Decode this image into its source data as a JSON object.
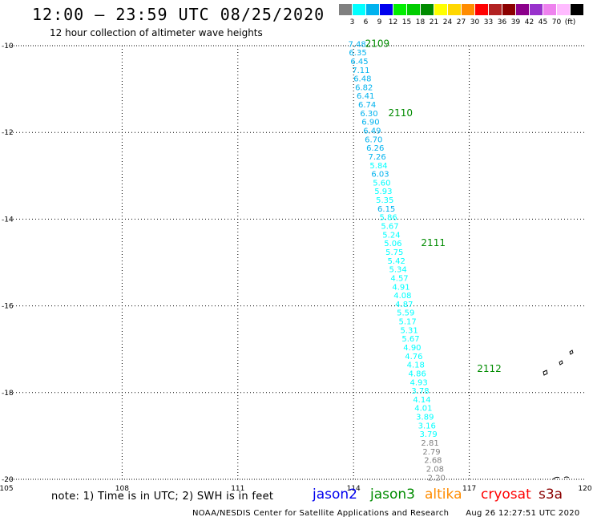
{
  "title": "12:00 – 23:59 UTC 08/25/2020",
  "subtitle": "12 hour collection of altimeter wave heights",
  "legend": {
    "colors": [
      "#808080",
      "#00ffff",
      "#00b2ee",
      "#0000ee",
      "#00ee00",
      "#00cd00",
      "#008b00",
      "#ffff00",
      "#ffd700",
      "#ff8c00",
      "#ff0000",
      "#b22222",
      "#8b0000",
      "#8b008b",
      "#9932cc",
      "#ee82ee",
      "#ffbbff",
      "#000000"
    ],
    "labels": [
      "3",
      "6",
      "9",
      "12",
      "15",
      "18",
      "21",
      "24",
      "27",
      "30",
      "33",
      "36",
      "39",
      "42",
      "45",
      "70",
      "(ft)"
    ]
  },
  "map": {
    "lon_ticks": [
      "105",
      "108",
      "111",
      "114",
      "117",
      "120"
    ],
    "lat_ticks": [
      "-10",
      "-12",
      "-14",
      "-16",
      "-18",
      "-20"
    ],
    "lon_min": 105,
    "lon_max": 120,
    "lat_min": -20,
    "lat_max": -10,
    "grid": "dotted",
    "times": [
      {
        "label": "2109",
        "lon": 114.3,
        "lat": -9.95
      },
      {
        "label": "2110",
        "lon": 114.9,
        "lat": -11.55
      },
      {
        "label": "2111",
        "lon": 115.75,
        "lat": -14.55
      },
      {
        "label": "2112",
        "lon": 117.2,
        "lat": -17.45
      }
    ],
    "track": [
      {
        "value": "7.48",
        "lon": 113.86,
        "lat": -9.95
      },
      {
        "value": "6.35",
        "lon": 113.88,
        "lat": -10.15
      },
      {
        "value": "6.45",
        "lon": 113.92,
        "lat": -10.35
      },
      {
        "value": "7.11",
        "lon": 113.96,
        "lat": -10.55
      },
      {
        "value": "6.48",
        "lon": 114.0,
        "lat": -10.75
      },
      {
        "value": "6.82",
        "lon": 114.04,
        "lat": -10.95
      },
      {
        "value": "6.41",
        "lon": 114.08,
        "lat": -11.15
      },
      {
        "value": "6.74",
        "lon": 114.12,
        "lat": -11.35
      },
      {
        "value": "6.30",
        "lon": 114.17,
        "lat": -11.55
      },
      {
        "value": "6.90",
        "lon": 114.21,
        "lat": -11.75
      },
      {
        "value": "6.49",
        "lon": 114.25,
        "lat": -11.95
      },
      {
        "value": "6.70",
        "lon": 114.29,
        "lat": -12.15
      },
      {
        "value": "6.26",
        "lon": 114.33,
        "lat": -12.35
      },
      {
        "value": "7.26",
        "lon": 114.38,
        "lat": -12.55
      },
      {
        "value": "5.84",
        "lon": 114.42,
        "lat": -12.75
      },
      {
        "value": "6.03",
        "lon": 114.46,
        "lat": -12.95
      },
      {
        "value": "5.60",
        "lon": 114.5,
        "lat": -13.15
      },
      {
        "value": "5.93",
        "lon": 114.54,
        "lat": -13.35
      },
      {
        "value": "5.35",
        "lon": 114.58,
        "lat": -13.55
      },
      {
        "value": "6.15",
        "lon": 114.62,
        "lat": -13.75
      },
      {
        "value": "5.86",
        "lon": 114.67,
        "lat": -13.95
      },
      {
        "value": "5.67",
        "lon": 114.71,
        "lat": -14.15
      },
      {
        "value": "5.24",
        "lon": 114.75,
        "lat": -14.35
      },
      {
        "value": "5.06",
        "lon": 114.79,
        "lat": -14.55
      },
      {
        "value": "5.75",
        "lon": 114.83,
        "lat": -14.75
      },
      {
        "value": "5.42",
        "lon": 114.88,
        "lat": -14.95
      },
      {
        "value": "5.34",
        "lon": 114.92,
        "lat": -15.15
      },
      {
        "value": "4.57",
        "lon": 114.96,
        "lat": -15.35
      },
      {
        "value": "4.91",
        "lon": 115.0,
        "lat": -15.55
      },
      {
        "value": "4.08",
        "lon": 115.04,
        "lat": -15.75
      },
      {
        "value": "4.87",
        "lon": 115.08,
        "lat": -15.95
      },
      {
        "value": "5.59",
        "lon": 115.12,
        "lat": -16.15
      },
      {
        "value": "5.17",
        "lon": 115.17,
        "lat": -16.35
      },
      {
        "value": "5.31",
        "lon": 115.21,
        "lat": -16.55
      },
      {
        "value": "5.67",
        "lon": 115.25,
        "lat": -16.75
      },
      {
        "value": "4.90",
        "lon": 115.29,
        "lat": -16.95
      },
      {
        "value": "4.76",
        "lon": 115.33,
        "lat": -17.15
      },
      {
        "value": "4.18",
        "lon": 115.38,
        "lat": -17.35
      },
      {
        "value": "4.86",
        "lon": 115.42,
        "lat": -17.55
      },
      {
        "value": "4.93",
        "lon": 115.46,
        "lat": -17.75
      },
      {
        "value": "3.78",
        "lon": 115.5,
        "lat": -17.95
      },
      {
        "value": "4.14",
        "lon": 115.54,
        "lat": -18.15
      },
      {
        "value": "4.01",
        "lon": 115.58,
        "lat": -18.35
      },
      {
        "value": "3.89",
        "lon": 115.62,
        "lat": -18.55
      },
      {
        "value": "3.16",
        "lon": 115.67,
        "lat": -18.75
      },
      {
        "value": "3.79",
        "lon": 115.71,
        "lat": -18.95
      },
      {
        "value": "2.81",
        "lon": 115.75,
        "lat": -19.15
      },
      {
        "value": "2.79",
        "lon": 115.79,
        "lat": -19.35
      },
      {
        "value": "2.68",
        "lon": 115.83,
        "lat": -19.55
      },
      {
        "value": "2.08",
        "lon": 115.88,
        "lat": -19.75
      },
      {
        "value": "2.20",
        "lon": 115.92,
        "lat": -19.95
      }
    ]
  },
  "footer": {
    "note": "note: 1) Time is in UTC; 2) SWH is in feet",
    "missions": [
      {
        "name": "jason2",
        "color": "#0000ee"
      },
      {
        "name": "jason3",
        "color": "#008b00"
      },
      {
        "name": "altika",
        "color": "#ff8c00"
      },
      {
        "name": "cryosat",
        "color": "#ff0000"
      },
      {
        "name": "s3a",
        "color": "#8b0000"
      }
    ],
    "credit": "NOAA/NESDIS Center for Satellite Applications and Research",
    "timestamp": "Aug 26 12:27:51 UTC 2020"
  }
}
